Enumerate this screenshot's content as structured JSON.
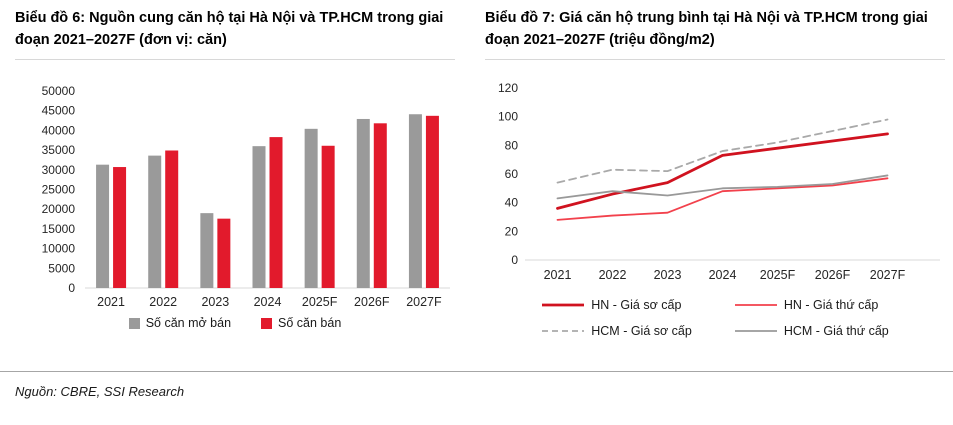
{
  "page": {
    "background": "#ffffff"
  },
  "colors": {
    "bar_gray": "#9a9a9a",
    "bar_red": "#e21a2c",
    "axis_line": "#d9d9d9",
    "title_divider": "#d8d8d8",
    "footer_divider": "#a6a6a6"
  },
  "footer": {
    "source": "Nguồn: CBRE, SSI Research"
  },
  "chart_data": [
    {
      "type": "bar",
      "title": "Biểu đồ 6: Nguồn cung căn hộ tại Hà Nội và TP.HCM trong giai đoạn 2021–2027F (đơn vị: căn)",
      "categories": [
        "2021",
        "2022",
        "2023",
        "2024",
        "2025F",
        "2026F",
        "2027F"
      ],
      "series": [
        {
          "name": "Số căn mở bán",
          "color": "#9a9a9a",
          "values": [
            31300,
            33600,
            19000,
            36000,
            40400,
            42900,
            44100
          ]
        },
        {
          "name": "Số căn bán",
          "color": "#e21a2c",
          "values": [
            30700,
            34900,
            17600,
            38300,
            36100,
            41800,
            43700
          ]
        }
      ],
      "xlabel": "",
      "ylabel": "",
      "ylim": [
        0,
        50000
      ],
      "ytick_step": 5000,
      "yticks": [
        "0",
        "5000",
        "10000",
        "15000",
        "20000",
        "25000",
        "30000",
        "35000",
        "40000",
        "45000",
        "50000"
      ],
      "grid": false,
      "legend_position": "bottom"
    },
    {
      "type": "line",
      "title": "Biểu đồ 7: Giá căn hộ trung bình tại Hà Nội và TP.HCM trong giai đoạn 2021–2027F (triệu đồng/m2)",
      "categories": [
        "2021",
        "2022",
        "2023",
        "2024",
        "2025F",
        "2026F",
        "2027F"
      ],
      "series": [
        {
          "name": "HN - Giá sơ cấp",
          "color": "#d0121f",
          "dash": "solid",
          "width": 2.8,
          "values": [
            36,
            46,
            54,
            73,
            78,
            83,
            88
          ]
        },
        {
          "name": "HN - Giá thứ cấp",
          "color": "#f2414c",
          "dash": "solid",
          "width": 1.8,
          "values": [
            28,
            31,
            33,
            48,
            50,
            52,
            57
          ]
        },
        {
          "name": "HCM - Giá sơ cấp",
          "color": "#a9a9a9",
          "dash": "dashed",
          "width": 1.8,
          "values": [
            54,
            63,
            62,
            76,
            82,
            90,
            98
          ]
        },
        {
          "name": "HCM - Giá thứ cấp",
          "color": "#999999",
          "dash": "solid",
          "width": 1.8,
          "values": [
            43,
            48,
            45,
            50,
            51,
            53,
            59
          ]
        }
      ],
      "xlabel": "",
      "ylabel": "",
      "ylim": [
        0,
        120
      ],
      "ytick_step": 20,
      "yticks": [
        "0",
        "20",
        "40",
        "60",
        "80",
        "100",
        "120"
      ],
      "grid": false,
      "legend_position": "bottom"
    }
  ]
}
